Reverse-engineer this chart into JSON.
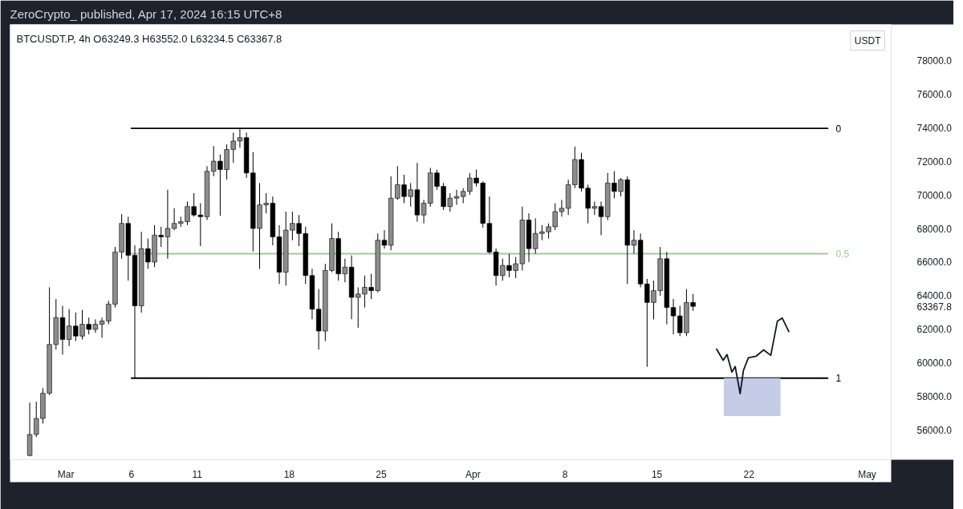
{
  "chart_data": {
    "type": "candlestick",
    "title": "ZeroCrypto_ published, Apr 17, 2024 16:15 UTC+8",
    "subtitle": "BTCUSDT.P, 4h  O63249.3  H63552.0  L63234.5  C63367.8",
    "ylabel": "USDT",
    "xlim": [
      "2024-02-25T18:00",
      "2024-05-02T20:00"
    ],
    "xticks": [
      {
        "value": "2024-03-01",
        "label": "Mar"
      },
      {
        "value": "2024-03-06",
        "label": "6"
      },
      {
        "value": "2024-03-11",
        "label": "11"
      },
      {
        "value": "2024-03-18",
        "label": "18"
      },
      {
        "value": "2024-03-25",
        "label": "25"
      },
      {
        "value": "2024-04-01",
        "label": "Apr"
      },
      {
        "value": "2024-04-08",
        "label": "8"
      },
      {
        "value": "2024-04-15",
        "label": "15"
      },
      {
        "value": "2024-04-22",
        "label": "22"
      },
      {
        "value": "2024-05-01",
        "label": "May"
      }
    ],
    "ylim": [
      54250,
      80130
    ],
    "yticks": [
      {
        "value": 56000,
        "label": "56000.0"
      },
      {
        "value": 58000,
        "label": "58000.0"
      },
      {
        "value": 60000,
        "label": "60000.0"
      },
      {
        "value": 62000,
        "label": "62000.0"
      },
      {
        "value": 63367.8,
        "label": "63367.8"
      },
      {
        "value": 64000,
        "label": "64000.0"
      },
      {
        "value": 66000,
        "label": "66000.0"
      },
      {
        "value": 68000,
        "label": "68000.0"
      },
      {
        "value": 70000,
        "label": "70000.0"
      },
      {
        "value": 72000,
        "label": "72000.0"
      },
      {
        "value": 74000,
        "label": "74000.0"
      },
      {
        "value": 76000,
        "label": "76000.0"
      },
      {
        "value": 78000,
        "label": "78000.0"
      }
    ],
    "series": [
      {
        "type": "line",
        "name": "0",
        "color": "#000000",
        "x": [
          "2024-03-06T00:00",
          "2024-04-28T00:00"
        ],
        "values": [
          73950,
          73950
        ]
      },
      {
        "type": "line",
        "name": "0.5",
        "color": "#9fcb9c",
        "x": [
          "2024-03-06T00:00",
          "2024-04-28T00:00"
        ],
        "values": [
          66500,
          66500
        ]
      },
      {
        "type": "line",
        "name": "1",
        "color": "#000000",
        "x": [
          "2024-03-06T00:00",
          "2024-04-28T00:00"
        ],
        "values": [
          59100,
          59100
        ]
      },
      {
        "type": "bar",
        "x": [
          "2024-04-22T06:00"
        ],
        "base": [
          56850
        ],
        "values": [
          2250
        ],
        "color": "#c5cce8"
      },
      {
        "type": "line",
        "color": "#131722",
        "x": [
          "2024-04-19T13:00",
          "2024-04-20T01:00",
          "2024-04-20T08:00",
          "2024-04-20T17:00",
          "2024-04-20T23:00",
          "2024-04-21T08:00",
          "2024-04-21T14:00",
          "2024-04-21T23:00",
          "2024-04-22T13:00",
          "2024-04-23T03:00",
          "2024-04-23T16:00",
          "2024-04-24T04:00",
          "2024-04-24T13:00",
          "2024-04-25T01:00"
        ],
        "values": [
          60830,
          60160,
          60500,
          59460,
          59790,
          58180,
          59550,
          60310,
          60400,
          60780,
          60450,
          62480,
          62670,
          61870
        ]
      },
      {
        "color": "#000000",
        "x": [
          "2024-02-27T06:00",
          "2024-02-27T18:00",
          "2024-02-28T06:00",
          "2024-02-28T18:00",
          "2024-02-29T06:00",
          "2024-02-29T18:00",
          "2024-03-01T06:00",
          "2024-03-01T18:00",
          "2024-03-02T06:00",
          "2024-03-02T18:00",
          "2024-03-03T06:00",
          "2024-03-03T18:00",
          "2024-03-04T06:00",
          "2024-03-04T18:00",
          "2024-03-05T06:00",
          "2024-03-05T18:00",
          "2024-03-06T06:00",
          "2024-03-06T18:00",
          "2024-03-07T06:00",
          "2024-03-07T18:00",
          "2024-03-08T06:00",
          "2024-03-08T18:00",
          "2024-03-09T06:00",
          "2024-03-09T18:00",
          "2024-03-10T06:00",
          "2024-03-10T18:00",
          "2024-03-11T06:00",
          "2024-03-11T18:00",
          "2024-03-12T06:00",
          "2024-03-12T18:00",
          "2024-03-13T06:00",
          "2024-03-13T18:00",
          "2024-03-14T06:00",
          "2024-03-14T18:00",
          "2024-03-15T06:00",
          "2024-03-15T18:00",
          "2024-03-16T06:00",
          "2024-03-16T18:00",
          "2024-03-17T06:00",
          "2024-03-17T18:00",
          "2024-03-18T06:00",
          "2024-03-18T18:00",
          "2024-03-19T06:00",
          "2024-03-19T18:00",
          "2024-03-20T06:00",
          "2024-03-20T18:00",
          "2024-03-21T06:00",
          "2024-03-21T18:00",
          "2024-03-22T06:00",
          "2024-03-22T18:00",
          "2024-03-23T06:00",
          "2024-03-23T18:00",
          "2024-03-24T06:00",
          "2024-03-24T18:00",
          "2024-03-25T06:00",
          "2024-03-25T18:00",
          "2024-03-26T06:00",
          "2024-03-26T18:00",
          "2024-03-27T06:00",
          "2024-03-27T18:00",
          "2024-03-28T06:00",
          "2024-03-28T18:00",
          "2024-03-29T06:00",
          "2024-03-29T18:00",
          "2024-03-30T06:00",
          "2024-03-30T18:00",
          "2024-03-31T06:00",
          "2024-03-31T18:00",
          "2024-04-01T06:00",
          "2024-04-01T18:00",
          "2024-04-02T06:00",
          "2024-04-02T18:00",
          "2024-04-03T06:00",
          "2024-04-03T18:00",
          "2024-04-04T06:00",
          "2024-04-04T18:00",
          "2024-04-05T06:00",
          "2024-04-05T18:00",
          "2024-04-06T06:00",
          "2024-04-06T18:00",
          "2024-04-07T06:00",
          "2024-04-07T18:00",
          "2024-04-08T06:00",
          "2024-04-08T18:00",
          "2024-04-09T06:00",
          "2024-04-09T18:00",
          "2024-04-10T06:00",
          "2024-04-10T18:00",
          "2024-04-11T06:00",
          "2024-04-11T18:00",
          "2024-04-12T06:00",
          "2024-04-12T18:00",
          "2024-04-13T06:00",
          "2024-04-13T18:00",
          "2024-04-14T06:00",
          "2024-04-14T18:00",
          "2024-04-15T06:00",
          "2024-04-15T18:00",
          "2024-04-16T06:00",
          "2024-04-16T18:00",
          "2024-04-17T06:00",
          "2024-04-17T18:00"
        ],
        "ohlc": [
          [
            54500,
            57640,
            54450,
            55750
          ],
          [
            55750,
            57700,
            55600,
            56700
          ],
          [
            56700,
            58500,
            56400,
            58200
          ],
          [
            58200,
            64500,
            58100,
            61100
          ],
          [
            61100,
            63800,
            60800,
            62700
          ],
          [
            62700,
            63400,
            60500,
            61400
          ],
          [
            61400,
            63200,
            61000,
            62200
          ],
          [
            62200,
            63000,
            61300,
            61600
          ],
          [
            61600,
            63150,
            61400,
            62300
          ],
          [
            62300,
            62700,
            61700,
            62000
          ],
          [
            62000,
            62600,
            61800,
            62300
          ],
          [
            62300,
            62700,
            61500,
            62500
          ],
          [
            62500,
            63700,
            62300,
            63500
          ],
          [
            63500,
            66900,
            63300,
            66600
          ],
          [
            66600,
            68850,
            66200,
            68300
          ],
          [
            68300,
            68700,
            64900,
            66400
          ],
          [
            66400,
            67000,
            59100,
            63400
          ],
          [
            63400,
            67800,
            63000,
            66800
          ],
          [
            66800,
            67400,
            65600,
            66000
          ],
          [
            66000,
            68200,
            65700,
            67600
          ],
          [
            67600,
            68100,
            66900,
            67500
          ],
          [
            67500,
            70300,
            66200,
            68000
          ],
          [
            68000,
            69200,
            67900,
            68300
          ],
          [
            68300,
            68700,
            68100,
            68400
          ],
          [
            68400,
            69600,
            68200,
            69300
          ],
          [
            69300,
            70100,
            68700,
            68800
          ],
          [
            68800,
            69500,
            66950,
            68700
          ],
          [
            68700,
            71700,
            68500,
            71400
          ],
          [
            71400,
            72900,
            71100,
            72000
          ],
          [
            72000,
            72400,
            68750,
            71500
          ],
          [
            71500,
            73000,
            70900,
            72700
          ],
          [
            72700,
            73700,
            71900,
            73200
          ],
          [
            73200,
            73900,
            72800,
            73400
          ],
          [
            73400,
            73700,
            71000,
            71300
          ],
          [
            71300,
            72540,
            66630,
            68000
          ],
          [
            68000,
            70700,
            65600,
            69400
          ],
          [
            69400,
            70100,
            68900,
            69500
          ],
          [
            69500,
            69900,
            67000,
            67500
          ],
          [
            67500,
            68200,
            64700,
            65400
          ],
          [
            65400,
            69000,
            64600,
            67900
          ],
          [
            67900,
            69000,
            67300,
            68300
          ],
          [
            68300,
            68800,
            66950,
            67700
          ],
          [
            67700,
            68100,
            64700,
            65200
          ],
          [
            65200,
            65600,
            62600,
            63200
          ],
          [
            63200,
            64400,
            60800,
            61900
          ],
          [
            61900,
            65900,
            61300,
            65500
          ],
          [
            65500,
            68300,
            65400,
            67400
          ],
          [
            67400,
            67800,
            64900,
            65300
          ],
          [
            65300,
            66200,
            64800,
            65700
          ],
          [
            65700,
            66400,
            62600,
            63900
          ],
          [
            63900,
            64500,
            62100,
            64100
          ],
          [
            64100,
            65200,
            63300,
            64500
          ],
          [
            64500,
            65300,
            63800,
            64300
          ],
          [
            64300,
            67700,
            64200,
            67300
          ],
          [
            67300,
            67900,
            66800,
            67000
          ],
          [
            67000,
            71100,
            66700,
            69800
          ],
          [
            69800,
            71700,
            69700,
            70600
          ],
          [
            70600,
            71200,
            69500,
            69900
          ],
          [
            69900,
            70700,
            69300,
            70300
          ],
          [
            70300,
            71900,
            68400,
            68800
          ],
          [
            68800,
            69700,
            68300,
            69500
          ],
          [
            69500,
            71600,
            69300,
            71300
          ],
          [
            71300,
            71500,
            70300,
            70500
          ],
          [
            70500,
            70700,
            69100,
            69300
          ],
          [
            69300,
            70100,
            69000,
            69800
          ],
          [
            69800,
            70300,
            69400,
            69900
          ],
          [
            69900,
            70400,
            69500,
            70200
          ],
          [
            70200,
            71300,
            70000,
            71000
          ],
          [
            71000,
            71500,
            70500,
            70700
          ],
          [
            70700,
            70800,
            68050,
            68300
          ],
          [
            68300,
            69900,
            66500,
            66600
          ],
          [
            66600,
            66800,
            64600,
            65200
          ],
          [
            65200,
            66200,
            64900,
            65800
          ],
          [
            65800,
            66500,
            65100,
            65500
          ],
          [
            65500,
            66300,
            65050,
            65900
          ],
          [
            65900,
            69300,
            65500,
            68500
          ],
          [
            68500,
            68900,
            66000,
            66800
          ],
          [
            66800,
            68600,
            66500,
            67700
          ],
          [
            67700,
            68200,
            67300,
            67800
          ],
          [
            67800,
            68300,
            67400,
            68100
          ],
          [
            68100,
            69500,
            67900,
            69000
          ],
          [
            69000,
            69700,
            68700,
            69200
          ],
          [
            69200,
            70900,
            68800,
            70600
          ],
          [
            70600,
            72860,
            70400,
            72100
          ],
          [
            72100,
            72500,
            70200,
            70400
          ],
          [
            70400,
            70600,
            68300,
            69200
          ],
          [
            69200,
            69600,
            68800,
            69300
          ],
          [
            69300,
            69600,
            67600,
            68700
          ],
          [
            68700,
            71300,
            68500,
            70700
          ],
          [
            70700,
            71400,
            69800,
            70200
          ],
          [
            70200,
            71000,
            69900,
            70900
          ],
          [
            70900,
            71100,
            64700,
            67000
          ],
          [
            67000,
            67900,
            66500,
            67300
          ],
          [
            67300,
            67700,
            64500,
            64700
          ],
          [
            64700,
            65000,
            59770,
            63600
          ],
          [
            63600,
            64900,
            62600,
            64300
          ],
          [
            64300,
            66900,
            64000,
            66200
          ],
          [
            66200,
            66600,
            62300,
            63300
          ],
          [
            63300,
            63800,
            61700,
            62800
          ],
          [
            62800,
            63400,
            61600,
            61800
          ],
          [
            61800,
            64400,
            61600,
            63600
          ],
          [
            63600,
            64100,
            63100,
            63367.8
          ]
        ],
        "colors": [
          "#8c8c8c",
          "#8c8c8c",
          "#8c8c8c",
          "#8c8c8c",
          "#8c8c8c",
          "#000000",
          "#8c8c8c",
          "#000000",
          "#8c8c8c",
          "#000000",
          "#8c8c8c",
          "#8c8c8c",
          "#8c8c8c",
          "#8c8c8c",
          "#8c8c8c",
          "#000000",
          "#000000",
          "#8c8c8c",
          "#000000",
          "#8c8c8c",
          "#000000",
          "#8c8c8c",
          "#8c8c8c",
          "#8c8c8c",
          "#8c8c8c",
          "#000000",
          "#000000",
          "#8c8c8c",
          "#8c8c8c",
          "#000000",
          "#8c8c8c",
          "#8c8c8c",
          "#8c8c8c",
          "#000000",
          "#000000",
          "#8c8c8c",
          "#8c8c8c",
          "#000000",
          "#000000",
          "#8c8c8c",
          "#8c8c8c",
          "#000000",
          "#000000",
          "#000000",
          "#000000",
          "#8c8c8c",
          "#8c8c8c",
          "#000000",
          "#8c8c8c",
          "#000000",
          "#8c8c8c",
          "#8c8c8c",
          "#000000",
          "#8c8c8c",
          "#000000",
          "#8c8c8c",
          "#8c8c8c",
          "#000000",
          "#8c8c8c",
          "#000000",
          "#8c8c8c",
          "#8c8c8c",
          "#000000",
          "#000000",
          "#8c8c8c",
          "#8c8c8c",
          "#8c8c8c",
          "#8c8c8c",
          "#000000",
          "#000000",
          "#000000",
          "#000000",
          "#8c8c8c",
          "#000000",
          "#8c8c8c",
          "#8c8c8c",
          "#000000",
          "#8c8c8c",
          "#8c8c8c",
          "#8c8c8c",
          "#8c8c8c",
          "#8c8c8c",
          "#8c8c8c",
          "#8c8c8c",
          "#000000",
          "#000000",
          "#8c8c8c",
          "#000000",
          "#8c8c8c",
          "#000000",
          "#8c8c8c",
          "#000000",
          "#8c8c8c",
          "#000000",
          "#000000",
          "#8c8c8c",
          "#8c8c8c",
          "#000000",
          "#000000",
          "#000000",
          "#8c8c8c",
          "#000000"
        ]
      }
    ]
  }
}
